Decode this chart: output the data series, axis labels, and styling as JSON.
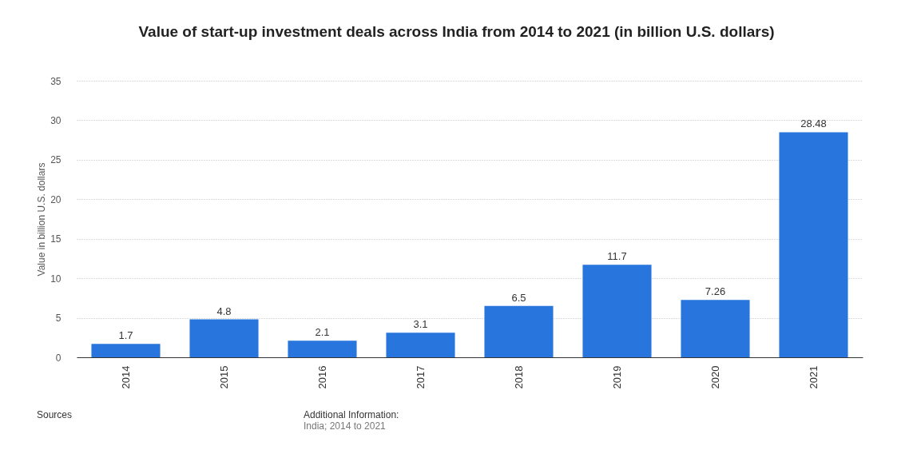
{
  "chart_data": {
    "type": "bar",
    "title": "Value of start-up investment deals across India from 2014 to 2021 (in billion U.S. dollars)",
    "ylabel": "Value in billion U.S. dollars",
    "categories": [
      "2014",
      "2015",
      "2016",
      "2017",
      "2018",
      "2019",
      "2020",
      "2021"
    ],
    "values": [
      1.7,
      4.8,
      2.1,
      3.1,
      6.5,
      11.7,
      7.26,
      28.48
    ],
    "color": "#2876dd",
    "ylim": [
      0,
      35
    ],
    "yticks": [
      0,
      5,
      10,
      15,
      20,
      25,
      30,
      35
    ],
    "grid": "y",
    "data_labels": true,
    "annotations": [
      "Sources",
      "Additional Information:",
      "India; 2014 to 2021"
    ]
  }
}
